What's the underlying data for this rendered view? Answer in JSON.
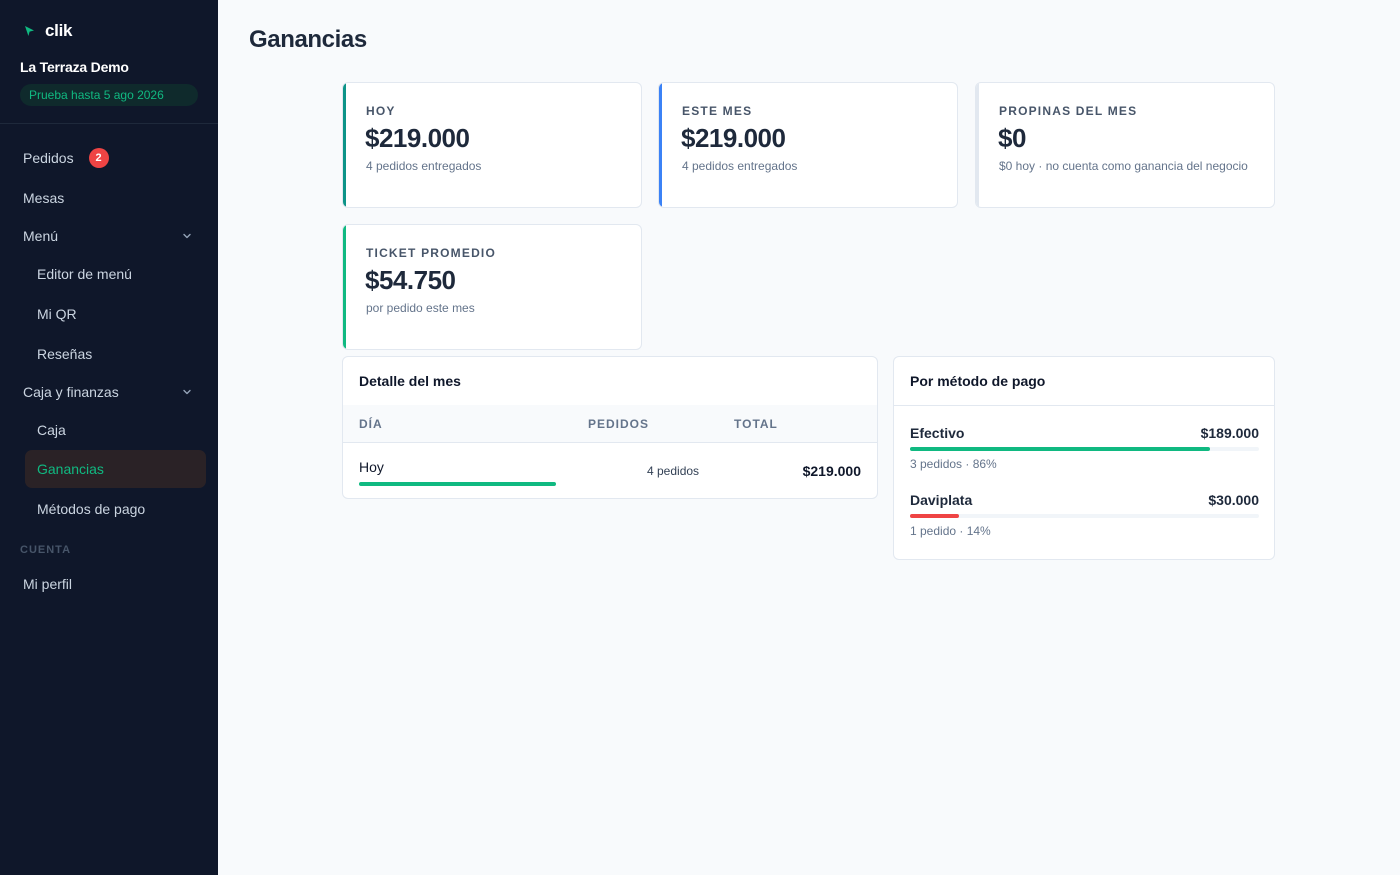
{
  "sidebar": {
    "brand": "clik",
    "business_name": "La Terraza Demo",
    "trial_badge": "Prueba hasta 5 ago 2026",
    "items": [
      {
        "label": "Pedidos",
        "badge": "2"
      },
      {
        "label": "Mesas"
      },
      {
        "label": "Menú"
      },
      {
        "label": "Editor de menú"
      },
      {
        "label": "Mi QR"
      },
      {
        "label": "Reseñas"
      },
      {
        "label": "Caja y finanzas"
      },
      {
        "label": "Caja"
      },
      {
        "label": "Ganancias"
      },
      {
        "label": "Métodos de pago"
      }
    ],
    "section_label": "CUENTA",
    "account_items": [
      {
        "label": "Mi perfil"
      }
    ],
    "colors": {
      "background": "#0f172a",
      "accent": "#10b981"
    }
  },
  "page": {
    "title": "Ganancias"
  },
  "stats": [
    {
      "label": "HOY",
      "value": "$219.000",
      "sub": "4 pedidos entregados",
      "accent": "#0d9488"
    },
    {
      "label": "ESTE MES",
      "value": "$219.000",
      "sub": "4 pedidos entregados",
      "accent": "#3b82f6"
    },
    {
      "label": "PROPINAS DEL MES",
      "value": "$0",
      "sub": "$0 hoy · no cuenta como ganancia del negocio",
      "accent": "#e2e8f0"
    },
    {
      "label": "TICKET PROMEDIO",
      "value": "$54.750",
      "sub": "por pedido este mes",
      "accent": "#10b981"
    }
  ],
  "monthly_detail": {
    "title": "Detalle del mes",
    "columns": [
      "DÍA",
      "PEDIDOS",
      "TOTAL"
    ],
    "rows": [
      {
        "day": "Hoy",
        "orders": "4 pedidos",
        "total": "$219.000",
        "share": 1.0
      }
    ]
  },
  "payment_methods": {
    "title": "Por método de pago",
    "items": [
      {
        "name": "Efectivo",
        "amount": "$189.000",
        "meta": "3 pedidos · 86%",
        "share": 0.86,
        "color": "#10b981"
      },
      {
        "name": "Daviplata",
        "amount": "$30.000",
        "meta": "1 pedido · 14%",
        "share": 0.14,
        "color": "#ef4444"
      }
    ]
  }
}
